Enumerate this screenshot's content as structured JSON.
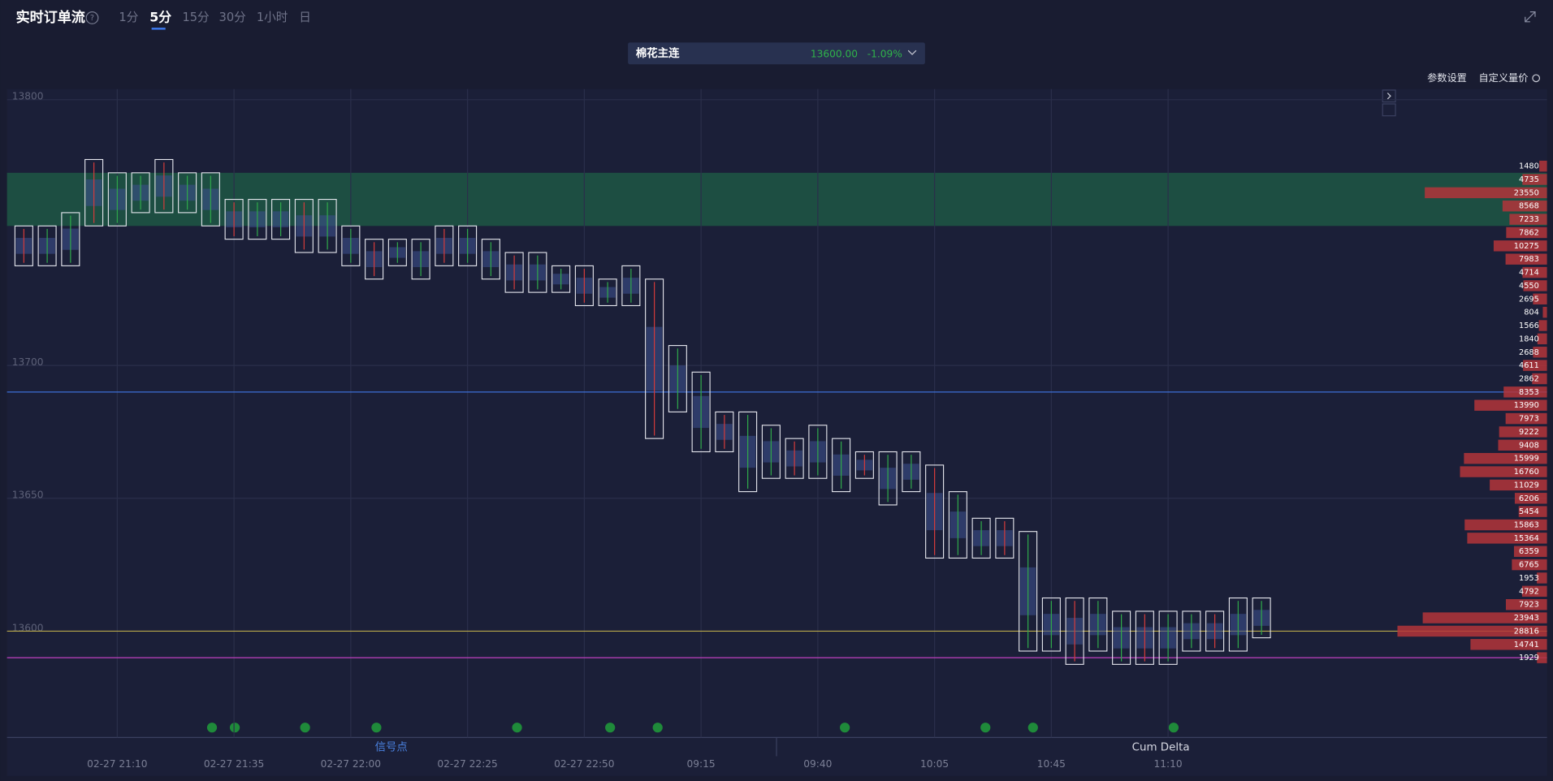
{
  "header": {
    "title": "实时订单流",
    "help": "?",
    "tabs": [
      "1分",
      "5分",
      "15分",
      "30分",
      "1小时",
      "日"
    ]
  },
  "instrument": {
    "name": "棉花主连",
    "price": "13600.00",
    "change": "-1.09%"
  },
  "toolbar": [
    "参数设置",
    "自定义量价"
  ],
  "panes": [
    "信号点",
    "Cum Delta"
  ],
  "chart_data": {
    "type": "footprint",
    "ylim": [
      13560,
      13804
    ],
    "yticks": [
      13600,
      13650,
      13700,
      13800
    ],
    "categories": [
      null,
      null,
      null,
      null,
      "02-27 21:10",
      null,
      null,
      null,
      null,
      "02-27 21:35",
      null,
      null,
      null,
      null,
      "02-27 22:00",
      null,
      null,
      null,
      null,
      "02-27 22:25",
      null,
      null,
      null,
      null,
      "02-27 22:50",
      null,
      null,
      null,
      null,
      "09:15",
      null,
      null,
      null,
      null,
      "09:40",
      null,
      null,
      null,
      null,
      "10:05",
      null,
      null,
      null,
      null,
      "10:45",
      null,
      null,
      null,
      null,
      "11:10",
      null,
      null,
      null,
      null
    ],
    "high": [
      13750,
      13750,
      13755,
      13775,
      13770,
      13770,
      13775,
      13770,
      13770,
      13760,
      13760,
      13760,
      13760,
      13760,
      13750,
      13745,
      13745,
      13745,
      13750,
      13750,
      13745,
      13740,
      13740,
      13735,
      13735,
      13730,
      13735,
      13730,
      13705,
      13695,
      13680,
      13680,
      13675,
      13670,
      13675,
      13670,
      13665,
      13665,
      13665,
      13660,
      13650,
      13640,
      13640,
      13635,
      13610,
      13610,
      13610,
      13605,
      13605,
      13605,
      13605,
      13605,
      13610,
      13610
    ],
    "low": [
      13740,
      13740,
      13740,
      13755,
      13755,
      13760,
      13760,
      13760,
      13755,
      13750,
      13750,
      13750,
      13745,
      13745,
      13740,
      13735,
      13740,
      13735,
      13740,
      13740,
      13735,
      13730,
      13730,
      13730,
      13725,
      13725,
      13725,
      13675,
      13685,
      13670,
      13670,
      13655,
      13660,
      13660,
      13660,
      13655,
      13660,
      13650,
      13655,
      13630,
      13630,
      13630,
      13630,
      13595,
      13595,
      13590,
      13595,
      13590,
      13590,
      13590,
      13595,
      13595,
      13595,
      13600
    ],
    "profile": {
      "prices": [
        13775,
        13770,
        13765,
        13760,
        13755,
        13750,
        13745,
        13740,
        13735,
        13730,
        13725,
        13720,
        13715,
        13710,
        13705,
        13700,
        13695,
        13690,
        13685,
        13680,
        13675,
        13670,
        13665,
        13660,
        13655,
        13650,
        13645,
        13640,
        13635,
        13630,
        13625,
        13620,
        13615,
        13610,
        13605,
        13600,
        13595,
        13590
      ],
      "volumes": [
        1480,
        4735,
        23550,
        8568,
        7233,
        7862,
        10275,
        7983,
        4714,
        4550,
        2695,
        804,
        1566,
        1840,
        2688,
        4611,
        2862,
        8353,
        13990,
        7973,
        9222,
        9408,
        15999,
        16760,
        11029,
        6206,
        5454,
        15863,
        15364,
        6359,
        6765,
        1953,
        4792,
        7923,
        23943,
        28816,
        14741,
        1929
      ],
      "color": "#b3353a"
    },
    "zone": {
      "from": 13755,
      "to": 13770,
      "color": "#1e5a45"
    },
    "levels": [
      {
        "value": 13690,
        "color": "#3d6fd6"
      },
      {
        "value": 13600,
        "color": "#b8a84a"
      },
      {
        "value": 13590,
        "color": "#c040c0"
      }
    ]
  }
}
